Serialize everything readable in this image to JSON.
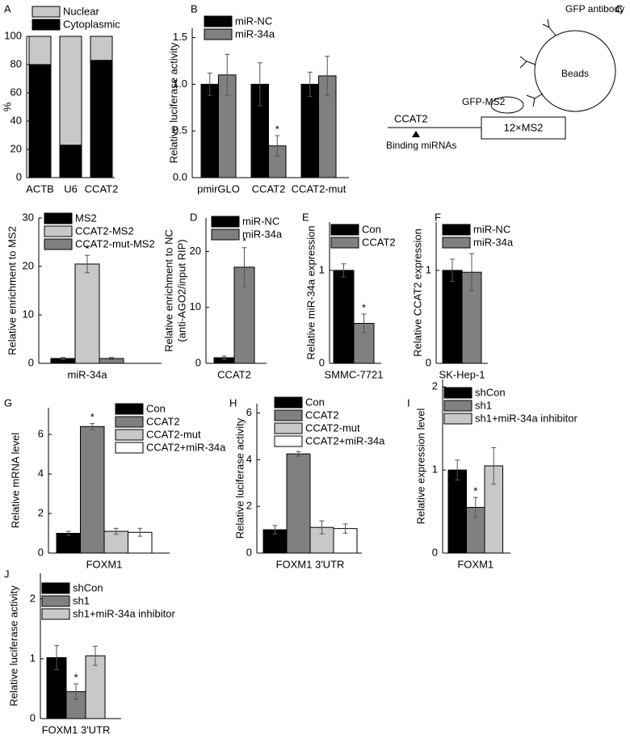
{
  "chart_data": [
    {
      "type": "stacked_bar",
      "label": "A",
      "ylabel": [
        "%"
      ],
      "categories": [
        "ACTB",
        "U6",
        "CCAT2"
      ],
      "series": [
        {
          "name": "Cytoplasmic",
          "color": "#000000",
          "values": [
            80,
            23,
            83
          ]
        },
        {
          "name": "Nuclear",
          "color": "#c8c8c8",
          "values": [
            20,
            77,
            17
          ]
        }
      ],
      "ylim": [
        0,
        100
      ],
      "yticks": [
        0,
        20,
        40,
        60,
        80,
        100
      ]
    },
    {
      "type": "bar",
      "label": "B",
      "ylabel": [
        "Relative luciferase activity"
      ],
      "categories": [
        "pmirGLO",
        "CCAT2",
        "CCAT2-mut"
      ],
      "series": [
        {
          "name": "miR-NC",
          "color": "#000000",
          "values": [
            1,
            1,
            1
          ],
          "errors": [
            0.12,
            0.23,
            0.13
          ]
        },
        {
          "name": "miR-34a",
          "color": "#808080",
          "values": [
            1.1,
            0.34,
            1.09
          ],
          "errors": [
            0.22,
            0.11,
            0.21
          ],
          "significance": [
            null,
            "*",
            null
          ]
        }
      ],
      "ylim": [
        0,
        1.6
      ],
      "yticks": [
        {
          "value": 0,
          "label": "0.0"
        },
        {
          "value": 0.5,
          "label": "0.5"
        },
        {
          "value": 1,
          "label": "1.0"
        },
        {
          "value": 1.5,
          "label": "1.5"
        }
      ]
    },
    {
      "type": "bar",
      "ylabel": [
        "Relative enrichment to MS2"
      ],
      "categories": [
        "miR-34a"
      ],
      "series": [
        {
          "name": "MS2",
          "color": "#000000",
          "values": [
            1
          ],
          "errors": [
            0.2
          ]
        },
        {
          "name": "CCAT2-MS2",
          "color": "#c8c8c8",
          "values": [
            20.5
          ],
          "errors": [
            1.8
          ],
          "significance": [
            "*"
          ]
        },
        {
          "name": "CCAT2-mut-MS2",
          "color": "#808080",
          "values": [
            1
          ],
          "errors": [
            0.2
          ]
        }
      ],
      "ylim": [
        0,
        30
      ],
      "yticks": [
        0,
        10,
        20,
        30
      ]
    },
    {
      "type": "bar",
      "label": "D",
      "ylabel": [
        "Relative enrichment to NC",
        "(anti-AGO2/input RIP)"
      ],
      "categories": [
        "CCAT2"
      ],
      "series": [
        {
          "name": "miR-NC",
          "color": "#000000",
          "values": [
            1
          ],
          "errors": [
            0.3
          ]
        },
        {
          "name": "miR-34a",
          "color": "#808080",
          "values": [
            17.2
          ],
          "errors": [
            3.5
          ],
          "significance": [
            "*"
          ]
        }
      ],
      "ylim": [
        0,
        26
      ],
      "yticks": [
        0,
        10,
        20
      ]
    },
    {
      "type": "bar",
      "label": "E",
      "ylabel": [
        "Relative miR-34a expression"
      ],
      "categories": [
        "SMMC-7721"
      ],
      "series": [
        {
          "name": "Con",
          "color": "#000000",
          "values": [
            1
          ],
          "errors": [
            0.07
          ]
        },
        {
          "name": "CCAT2",
          "color": "#808080",
          "values": [
            0.43
          ],
          "errors": [
            0.1
          ],
          "significance": [
            "*"
          ]
        }
      ],
      "ylim": [
        0,
        1.52
      ],
      "yticks": [
        0,
        1
      ]
    },
    {
      "type": "bar",
      "label": "F",
      "ylabel": [
        "Relative CCAT2 expression"
      ],
      "categories": [
        "SK-Hep-1"
      ],
      "series": [
        {
          "name": "miR-NC",
          "color": "#000000",
          "values": [
            1
          ],
          "errors": [
            0.12
          ]
        },
        {
          "name": "miR-34a",
          "color": "#808080",
          "values": [
            0.98
          ],
          "errors": [
            0.2
          ]
        }
      ],
      "ylim": [
        0,
        1.52
      ],
      "yticks": [
        0,
        1
      ]
    },
    {
      "type": "bar",
      "label": "G",
      "ylabel": [
        "Relative mRNA level"
      ],
      "categories": [
        "FOXM1"
      ],
      "series": [
        {
          "name": "Con",
          "color": "#000000",
          "values": [
            1
          ],
          "errors": [
            0.1
          ]
        },
        {
          "name": "CCAT2",
          "color": "#808080",
          "values": [
            6.4
          ],
          "errors": [
            0.15
          ],
          "significance": [
            "*"
          ]
        },
        {
          "name": "CCAT2-mut",
          "color": "#c8c8c8",
          "values": [
            1.1
          ],
          "errors": [
            0.15
          ]
        },
        {
          "name": "CCAT2+miR-34a",
          "color": "#ffffff",
          "values": [
            1.05
          ],
          "errors": [
            0.2
          ]
        }
      ],
      "ylim": [
        0,
        7.35
      ],
      "yticks": [
        0,
        2,
        4,
        6
      ]
    },
    {
      "type": "bar",
      "label": "H",
      "ylabel": [
        "Relative luciferase activity"
      ],
      "categories": [
        "FOXM1 3'UTR"
      ],
      "series": [
        {
          "name": "Con",
          "color": "#000000",
          "values": [
            1
          ],
          "errors": [
            0.18
          ]
        },
        {
          "name": "CCAT2",
          "color": "#808080",
          "values": [
            4.25
          ],
          "errors": [
            0.1
          ],
          "significance": [
            "*"
          ]
        },
        {
          "name": "CCAT2-mut",
          "color": "#c8c8c8",
          "values": [
            1.1
          ],
          "errors": [
            0.28
          ]
        },
        {
          "name": "CCAT2+miR-34a",
          "color": "#ffffff",
          "values": [
            1.05
          ],
          "errors": [
            0.2
          ]
        }
      ],
      "ylim": [
        0,
        6.4
      ],
      "yticks": [
        0,
        2,
        4,
        6
      ]
    },
    {
      "type": "bar",
      "label": "I",
      "ylabel": [
        "Relative expression level"
      ],
      "categories": [
        "FOXM1"
      ],
      "series": [
        {
          "name": "shCon",
          "color": "#000000",
          "values": [
            1
          ],
          "errors": [
            0.12
          ]
        },
        {
          "name": "sh1",
          "color": "#808080",
          "values": [
            0.55
          ],
          "errors": [
            0.12
          ],
          "significance": [
            "*"
          ]
        },
        {
          "name": "sh1+miR-34a inhibitor",
          "color": "#c8c8c8",
          "values": [
            1.05
          ],
          "errors": [
            0.22
          ]
        }
      ],
      "ylim": [
        0,
        2.09
      ],
      "yticks": [
        0,
        1,
        2
      ]
    },
    {
      "type": "bar",
      "label": "J",
      "ylabel": [
        "Relative luciferase activity"
      ],
      "categories": [
        "FOXM1 3'UTR"
      ],
      "series": [
        {
          "name": "shCon",
          "color": "#000000",
          "values": [
            1.02
          ],
          "errors": [
            0.2
          ]
        },
        {
          "name": "sh1",
          "color": "#808080",
          "values": [
            0.45
          ],
          "errors": [
            0.13
          ],
          "significance": [
            "*"
          ]
        },
        {
          "name": "sh1+miR-34a inhibitor",
          "color": "#c8c8c8",
          "values": [
            1.05
          ],
          "errors": [
            0.16
          ]
        }
      ],
      "ylim": [
        0,
        2.43
      ],
      "yticks": [
        0,
        1,
        2
      ]
    }
  ],
  "diagram": {
    "label": "C",
    "antibody": "GFP antibody",
    "beads": "Beads",
    "tag": "GFP-MS2",
    "rna": "CCAT2",
    "repeat": "12×MS2",
    "site": "Binding miRNAs"
  }
}
